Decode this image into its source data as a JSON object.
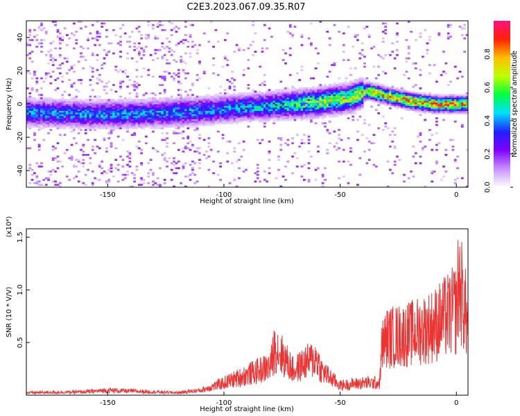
{
  "chart_data": [
    {
      "type": "heatmap",
      "title": "C2E3.2023.067.09.35.R07",
      "xlabel": "Height of straight line (km)",
      "ylabel": "Frequency (Hz)",
      "xlim": [
        -185,
        5
      ],
      "ylim": [
        -50,
        50
      ],
      "xticks": [
        "-150",
        "-100",
        "-50",
        "0"
      ],
      "yticks": [
        "40",
        "20",
        "0",
        "-20",
        "-40"
      ],
      "colorbar": {
        "label": "Normalized spectral amplitude",
        "range": [
          0,
          1
        ],
        "ticks": [
          "0.0",
          "0.2",
          "0.4",
          "0.6",
          "0.8"
        ],
        "colors": [
          "#ffffff",
          "#c890ff",
          "#8000ff",
          "#2020ff",
          "#00e0ff",
          "#00ff40",
          "#c0ff00",
          "#ffc000",
          "#ff2000",
          "#ff1080"
        ]
      },
      "ridge": {
        "x": [
          -185,
          -160,
          -140,
          -120,
          -100,
          -80,
          -60,
          -45,
          -38,
          -30,
          -20,
          -10,
          0,
          5
        ],
        "center_freq": [
          -5,
          -6,
          -6,
          -5,
          -3,
          -1,
          1,
          4,
          8,
          5,
          2,
          0,
          0,
          0
        ],
        "peak_amplitude": [
          0.45,
          0.45,
          0.45,
          0.45,
          0.45,
          0.5,
          0.7,
          0.75,
          0.8,
          0.85,
          0.95,
          0.95,
          0.9,
          0.8
        ]
      }
    },
    {
      "type": "line",
      "xlabel": "Height of straight line (km)",
      "ylabel": "SNR (10 * V/V)",
      "scale_label": "(x10⁴)",
      "xlim": [
        -185,
        5
      ],
      "ylim": [
        0,
        1.58
      ],
      "xticks": [
        "-150",
        "-100",
        "-50",
        "0"
      ],
      "yticks": [
        "0.5",
        "1.0",
        "1.5"
      ],
      "color": "#ee3333",
      "series": [
        {
          "x": [
            -185,
            -160,
            -150,
            -140,
            -120,
            -110,
            -100,
            -90,
            -80,
            -78,
            -70,
            -65,
            -60,
            -58,
            -50,
            -40,
            -33,
            -32,
            -30,
            -20,
            -10,
            -5,
            0,
            1,
            3,
            5
          ],
          "y": [
            0.03,
            0.04,
            0.06,
            0.05,
            0.03,
            0.06,
            0.15,
            0.25,
            0.35,
            0.6,
            0.3,
            0.4,
            0.45,
            0.3,
            0.12,
            0.15,
            0.15,
            0.6,
            0.7,
            0.75,
            0.85,
            0.95,
            1.05,
            1.4,
            1.15,
            0.85
          ]
        }
      ]
    }
  ]
}
